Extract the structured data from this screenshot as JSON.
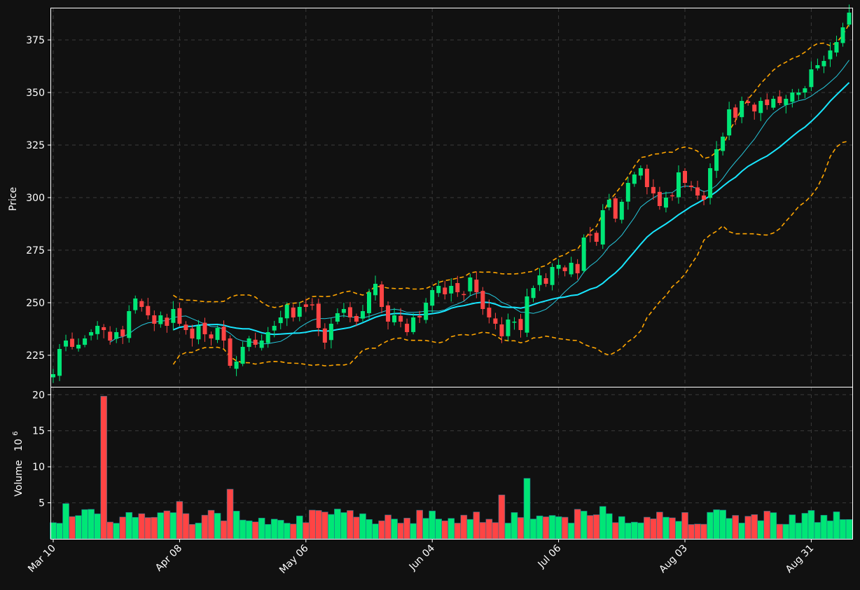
{
  "chart_data": {
    "type": "candlestick",
    "colors": {
      "background": "#111111",
      "grid": "#3a3a3a",
      "axis": "#ffffff",
      "up": "#00e676",
      "down": "#ff4444",
      "ma_short": "#26c6da",
      "ma_long": "#18e6ff",
      "bollinger": "#ffa500"
    },
    "grid": true,
    "price_panel": {
      "ylabel": "Price",
      "ylim": [
        210,
        390
      ],
      "yticks": [
        225,
        250,
        275,
        300,
        325,
        350,
        375
      ]
    },
    "volume_panel": {
      "ylabel": "Volume",
      "ylabel_exponent": "10",
      "ylabel_power": "6",
      "ylim": [
        0,
        21
      ],
      "yticks": [
        5,
        10,
        15,
        20
      ]
    },
    "x_ticks": [
      {
        "label": "Mar 10",
        "index": 0
      },
      {
        "label": "Apr 08",
        "index": 20
      },
      {
        "label": "May 06",
        "index": 40
      },
      {
        "label": "Jun 04",
        "index": 60
      },
      {
        "label": "Jul 06",
        "index": 80
      },
      {
        "label": "Aug 03",
        "index": 100
      },
      {
        "label": "Aug 31",
        "index": 120
      }
    ],
    "closes": [
      216,
      228,
      232,
      229,
      230,
      233,
      236,
      239,
      237,
      232,
      236,
      234,
      246,
      252,
      248,
      244,
      240,
      244,
      239,
      247,
      240,
      237,
      233,
      239,
      235,
      233,
      238,
      232,
      220,
      222,
      229,
      233,
      230,
      232,
      236,
      239,
      243,
      249,
      243,
      248,
      248,
      249,
      238,
      231,
      240,
      245,
      247,
      243,
      241,
      246,
      255,
      259,
      248,
      241,
      244,
      241,
      236,
      243,
      243,
      250,
      256,
      258,
      254,
      258,
      255,
      254,
      262,
      255,
      247,
      243,
      240,
      234,
      242,
      241,
      237,
      253,
      257,
      263,
      259,
      267,
      268,
      265,
      269,
      264,
      281,
      282,
      279,
      294,
      299,
      290,
      298,
      307,
      311,
      314,
      305,
      302,
      296,
      300,
      301,
      312,
      307,
      305,
      301,
      299,
      314,
      323,
      329,
      342,
      338,
      346,
      345,
      341,
      346,
      344,
      347,
      345,
      347,
      350,
      350,
      352,
      361,
      363,
      365,
      370,
      374,
      381,
      388
    ]
  }
}
